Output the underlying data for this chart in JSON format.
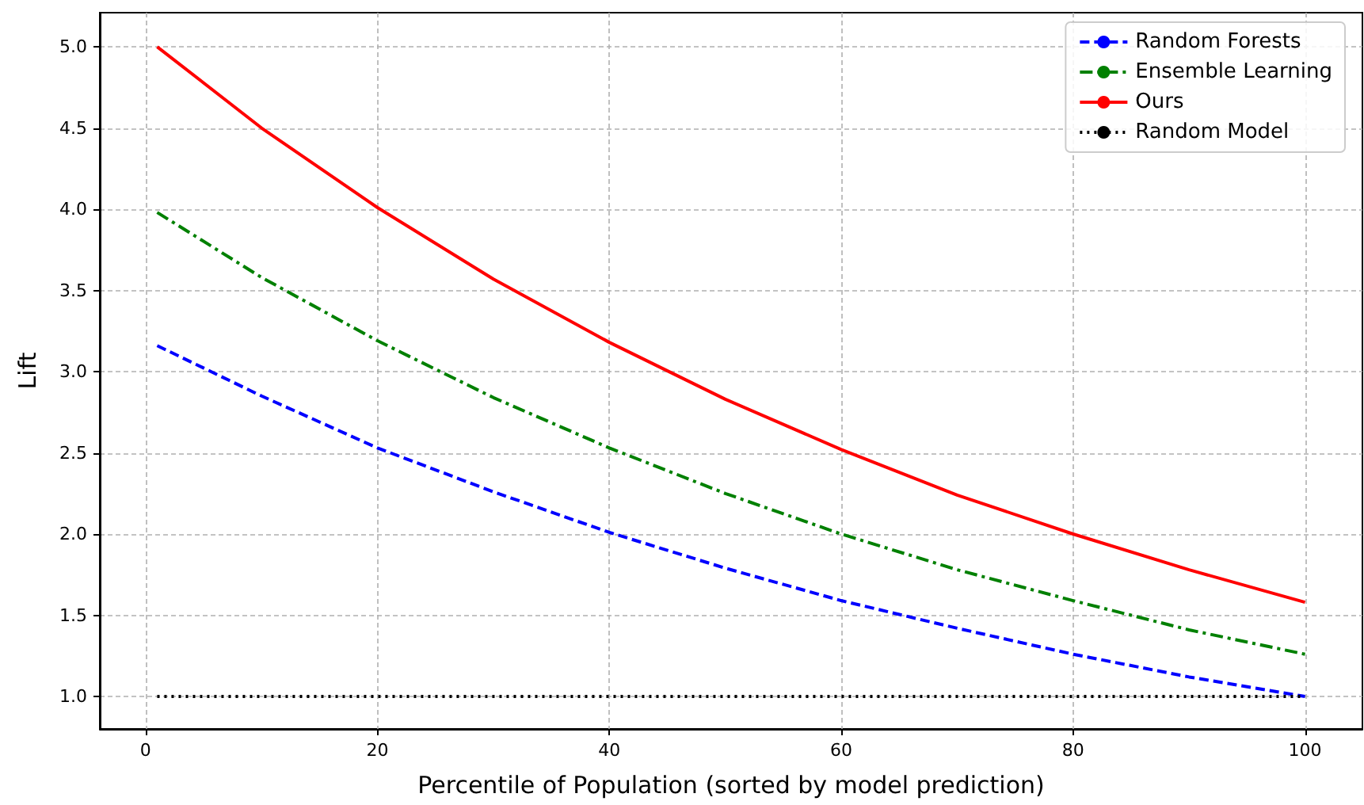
{
  "chart_data": {
    "type": "line",
    "xlabel": "Percentile of Population (sorted by model prediction)",
    "ylabel": "Lift",
    "xlim": [
      -3.95,
      104.95
    ],
    "ylim": [
      0.8,
      5.21
    ],
    "xticks": [
      0,
      20,
      40,
      60,
      80,
      100
    ],
    "yticks": [
      {
        "value": 1,
        "label": "1.0"
      },
      {
        "value": 1.5,
        "label": "1.5"
      },
      {
        "value": 2,
        "label": "2.0"
      },
      {
        "value": 2.5,
        "label": "2.5"
      },
      {
        "value": 3,
        "label": "3.0"
      },
      {
        "value": 3.5,
        "label": "3.5"
      },
      {
        "value": 4,
        "label": "4.0"
      },
      {
        "value": 4.5,
        "label": "4.5"
      },
      {
        "value": 5,
        "label": "5.0"
      }
    ],
    "grid": true,
    "legend": "top right",
    "marker": "none",
    "series": [
      {
        "name": "Random Forests",
        "color": "#0000ff",
        "line_style": "dashed",
        "x": [
          1,
          10,
          20,
          30,
          40,
          50,
          60,
          70,
          80,
          90,
          100
        ],
        "values": [
          3.16,
          2.85,
          2.53,
          2.26,
          2.01,
          1.79,
          1.59,
          1.42,
          1.26,
          1.12,
          1.0
        ]
      },
      {
        "name": "Ensemble Learning",
        "color": "#008000",
        "line_style": "dashdot",
        "x": [
          1,
          10,
          20,
          30,
          40,
          50,
          60,
          70,
          80,
          90,
          100
        ],
        "values": [
          3.98,
          3.58,
          3.19,
          2.84,
          2.53,
          2.25,
          2.0,
          1.78,
          1.59,
          1.41,
          1.26
        ]
      },
      {
        "name": "Ours",
        "color": "#ff0000",
        "line_style": "solid",
        "x": [
          1,
          10,
          20,
          30,
          40,
          50,
          60,
          70,
          80,
          90,
          100
        ],
        "values": [
          5.0,
          4.5,
          4.01,
          3.57,
          3.18,
          2.83,
          2.52,
          2.24,
          2.0,
          1.78,
          1.58
        ]
      },
      {
        "name": "Random Model",
        "color": "#000000",
        "line_style": "dotted",
        "x": [
          1,
          100
        ],
        "values": [
          1.0,
          1.0
        ]
      }
    ]
  }
}
